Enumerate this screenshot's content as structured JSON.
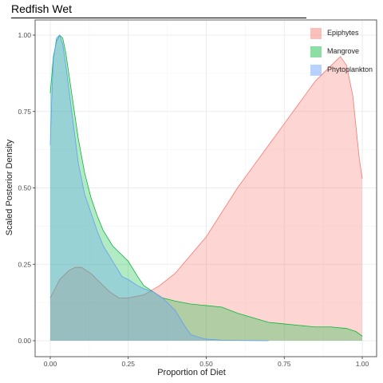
{
  "chart_data": {
    "type": "area",
    "title": "Redfish Wet",
    "xlabel": "Proportion of Diet",
    "ylabel": "Scaled Posterior Density",
    "xlim": [
      0,
      1
    ],
    "ylim": [
      0,
      1
    ],
    "x_ticks": [
      "0.00",
      "0.25",
      "0.50",
      "0.75",
      "1.00"
    ],
    "y_ticks": [
      "0.00",
      "0.25",
      "0.50",
      "0.75",
      "1.00"
    ],
    "grid": true,
    "legend_position": "top-right",
    "series": [
      {
        "name": "Epiphytes",
        "fill": "#F8766D",
        "stroke": "#F8766D",
        "x": [
          0,
          0.03,
          0.06,
          0.08,
          0.1,
          0.13,
          0.16,
          0.19,
          0.22,
          0.25,
          0.3,
          0.35,
          0.4,
          0.45,
          0.5,
          0.55,
          0.6,
          0.65,
          0.7,
          0.75,
          0.8,
          0.85,
          0.9,
          0.93,
          0.95,
          0.97,
          0.99,
          1.0
        ],
        "y": [
          0.14,
          0.2,
          0.23,
          0.24,
          0.24,
          0.22,
          0.19,
          0.16,
          0.14,
          0.14,
          0.15,
          0.18,
          0.22,
          0.28,
          0.34,
          0.42,
          0.5,
          0.57,
          0.64,
          0.71,
          0.78,
          0.85,
          0.9,
          0.93,
          0.9,
          0.8,
          0.6,
          0.53
        ]
      },
      {
        "name": "Mangrove",
        "fill": "#00BA38",
        "stroke": "#00BA38",
        "x": [
          0,
          0.005,
          0.01,
          0.02,
          0.03,
          0.04,
          0.05,
          0.07,
          0.09,
          0.11,
          0.13,
          0.15,
          0.17,
          0.2,
          0.23,
          0.25,
          0.28,
          0.3,
          0.33,
          0.36,
          0.4,
          0.45,
          0.5,
          0.55,
          0.6,
          0.65,
          0.7,
          0.75,
          0.8,
          0.85,
          0.9,
          0.95,
          0.98,
          1.0
        ],
        "y": [
          0.81,
          0.87,
          0.93,
          0.98,
          1.0,
          0.99,
          0.94,
          0.8,
          0.66,
          0.55,
          0.47,
          0.41,
          0.36,
          0.31,
          0.28,
          0.26,
          0.21,
          0.18,
          0.16,
          0.14,
          0.13,
          0.12,
          0.115,
          0.11,
          0.09,
          0.075,
          0.06,
          0.055,
          0.05,
          0.045,
          0.045,
          0.04,
          0.03,
          0.015
        ]
      },
      {
        "name": "Phytoplankton",
        "fill": "#619CFF",
        "stroke": "#619CFF",
        "x": [
          0,
          0.005,
          0.01,
          0.02,
          0.03,
          0.04,
          0.05,
          0.07,
          0.09,
          0.11,
          0.13,
          0.15,
          0.17,
          0.2,
          0.23,
          0.25,
          0.28,
          0.3,
          0.33,
          0.36,
          0.4,
          0.43,
          0.45,
          0.48,
          0.5,
          0.55,
          0.6,
          0.65,
          0.7
        ],
        "y": [
          0.64,
          0.8,
          0.92,
          0.99,
          1.0,
          0.97,
          0.9,
          0.74,
          0.58,
          0.48,
          0.42,
          0.36,
          0.31,
          0.26,
          0.21,
          0.2,
          0.18,
          0.17,
          0.16,
          0.14,
          0.1,
          0.05,
          0.02,
          0.01,
          0.005,
          0.002,
          0.001,
          0.0005,
          0
        ]
      }
    ]
  }
}
